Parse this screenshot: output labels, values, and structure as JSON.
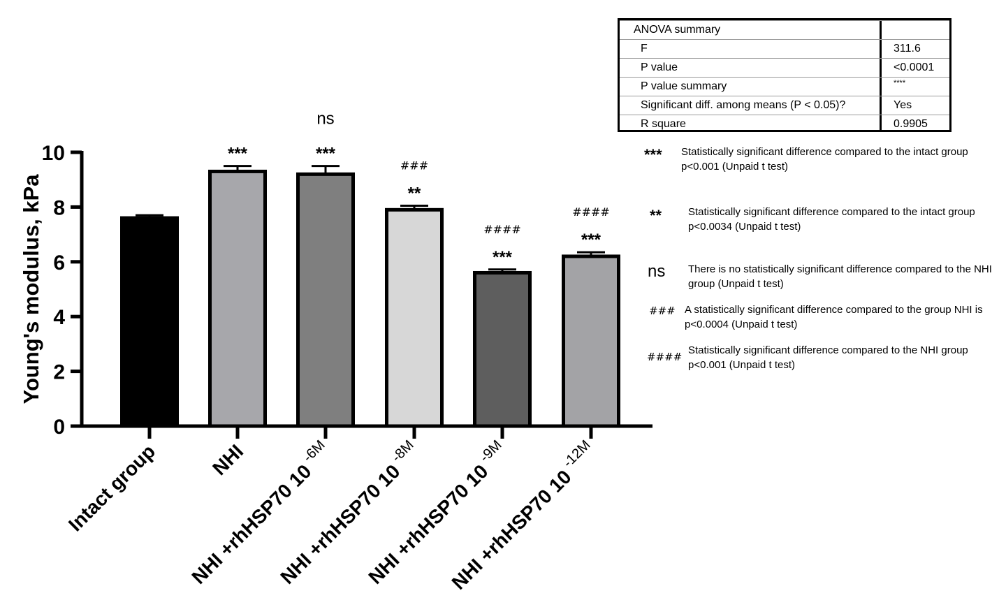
{
  "chart_data": {
    "type": "bar",
    "ylabel": "Young's modulus, kPa",
    "ylim": [
      0,
      10
    ],
    "yticks": [
      0,
      2,
      4,
      6,
      8,
      10
    ],
    "categories": [
      {
        "main": "Intact group",
        "sup": ""
      },
      {
        "main": "NHI",
        "sup": ""
      },
      {
        "main": "NHI +rhHSP70 10",
        "sup": "-6M"
      },
      {
        "main": "NHI +rhHSP70 10",
        "sup": "-8M"
      },
      {
        "main": "NHI +rhHSP70 10",
        "sup": "-9M"
      },
      {
        "main": "NHI +rhHSP70 10",
        "sup": "-12M"
      }
    ],
    "values": [
      7.6,
      9.3,
      9.2,
      7.9,
      5.6,
      6.2
    ],
    "errors": [
      0.1,
      0.2,
      0.3,
      0.15,
      0.12,
      0.15
    ],
    "bar_colors": [
      "#000000",
      "#a7a7ab",
      "#7f7f7f",
      "#d7d7d7",
      "#5e5e5e",
      "#a3a3a6"
    ],
    "annotations": [
      [],
      [
        "***"
      ],
      [
        "***",
        "ns"
      ],
      [
        "**",
        "###"
      ],
      [
        "***",
        "####"
      ],
      [
        "***",
        "####"
      ]
    ]
  },
  "anova": {
    "title": "ANOVA summary",
    "rows": [
      {
        "label": "F",
        "value": "311.6"
      },
      {
        "label": "P value",
        "value": "<0.0001"
      },
      {
        "label": "P value summary",
        "value": "****"
      },
      {
        "label": "Significant diff. among means (P < 0.05)?",
        "value": "Yes"
      },
      {
        "label": "R square",
        "value": "0.9905"
      }
    ]
  },
  "legend": [
    {
      "symbol": "***",
      "text": "Statistically significant difference compared to the intact group p<0.001 (Unpaid t test)"
    },
    {
      "symbol": "**",
      "text": "Statistically significant difference compared to the intact group p<0.0034 (Unpaid t test)"
    },
    {
      "symbol": "ns",
      "text": "There is no statistically significant difference compared to the NHI group (Unpaid t test)"
    },
    {
      "symbol": "###",
      "text": "A statistically significant difference compared to the group NHI is p<0.0004 (Unpaid t test)"
    },
    {
      "symbol": "####",
      "text": "Statistically significant difference compared to the NHI group p<0.001 (Unpaid t test)"
    }
  ]
}
